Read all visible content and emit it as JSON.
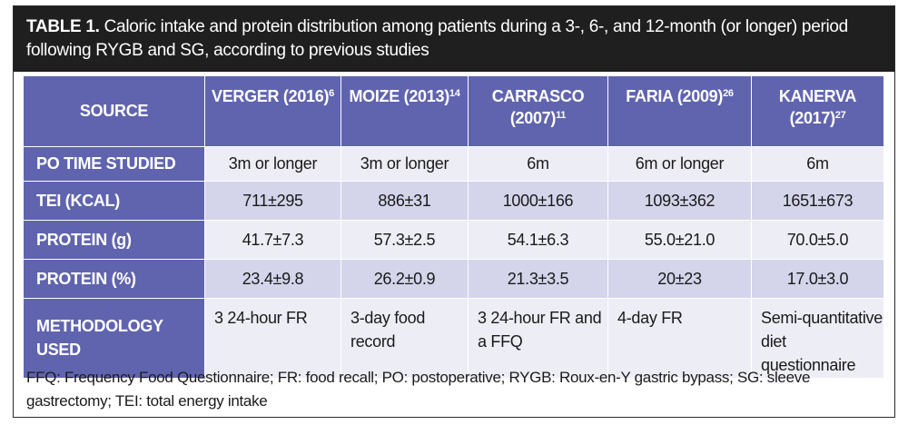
{
  "caption": {
    "label": "TABLE 1.",
    "text": "Caloric intake and protein distribution among patients during a 3-, 6-, and 12-month (or longer) period following RYGB and SG, according to previous studies"
  },
  "table": {
    "source_header": "SOURCE",
    "columns": [
      {
        "name": "VERGER (2016)",
        "ref": "6"
      },
      {
        "name": "MOIZE (2013)",
        "ref": "14"
      },
      {
        "name": "CARRASCO (2007)",
        "ref": "11"
      },
      {
        "name": "FARIA (2009)",
        "ref": "26"
      },
      {
        "name": "KANERVA (2017)",
        "ref": "27"
      }
    ],
    "rows": [
      {
        "label": "PO TIME STUDIED",
        "values": [
          "3m or longer",
          "3m or longer",
          "6m",
          "6m or longer",
          "6m"
        ]
      },
      {
        "label": "TEI (KCAL)",
        "values": [
          "711±295",
          "886±31",
          "1000±166",
          "1093±362",
          "1651±673"
        ]
      },
      {
        "label": "PROTEIN (g)",
        "values": [
          "41.7±7.3",
          "57.3±2.5",
          "54.1±6.3",
          "55.0±21.0",
          "70.0±5.0"
        ]
      },
      {
        "label": "PROTEIN (%)",
        "values": [
          "23.4±9.8",
          "26.2±0.9",
          "21.3±3.5",
          "20±23",
          "17.0±3.0"
        ]
      },
      {
        "label": "METHODOLOGY USED",
        "values": [
          "3 24-hour FR",
          "3-day food record",
          "3 24-hour FR and a FFQ",
          "4-day FR",
          "Semi-quantitative diet questionnaire"
        ]
      }
    ]
  },
  "footnote": "FFQ: Frequency Food Questionnaire; FR: food recall; PO: postoperative; RYGB: Roux-en-Y gastric bypass; SG: sleeve gastrectomy; TEI: total energy intake",
  "colors": {
    "header_bg": "#6064ae",
    "caption_bg": "#1f1f1f",
    "row_light": "#ededf6",
    "row_dark": "#d4d5eb"
  }
}
